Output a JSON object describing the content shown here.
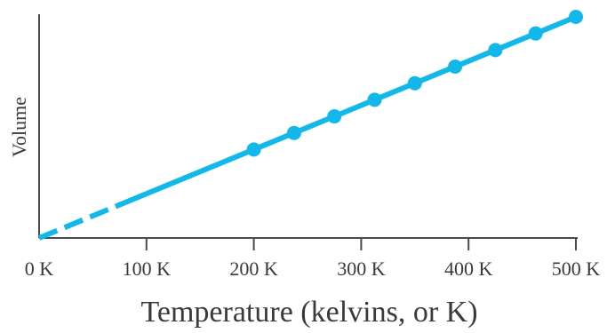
{
  "chart_data": {
    "type": "line",
    "title": "",
    "xlabel": "Temperature (kelvins, or K)",
    "ylabel": "Volume",
    "xlim": [
      0,
      500
    ],
    "x_ticks": [
      {
        "value": 0,
        "label": "0 K"
      },
      {
        "value": 100,
        "label": "100 K"
      },
      {
        "value": 200,
        "label": "200 K"
      },
      {
        "value": 300,
        "label": "300 K"
      },
      {
        "value": 400,
        "label": "400 K"
      },
      {
        "value": 500,
        "label": "500 K"
      }
    ],
    "y_ticks_shown": false,
    "line_color": "#12b8ea",
    "measured_points": {
      "x": [
        200,
        237.5,
        275,
        312.5,
        350,
        387.5,
        425,
        462.5,
        500
      ],
      "y": [
        0.4,
        0.475,
        0.55,
        0.625,
        0.7,
        0.775,
        0.85,
        0.925,
        1.0
      ]
    },
    "solid_segment_x": [
      80,
      500
    ],
    "dashed_extrapolation_x": [
      0,
      80
    ],
    "grid": false,
    "legend": "none"
  }
}
